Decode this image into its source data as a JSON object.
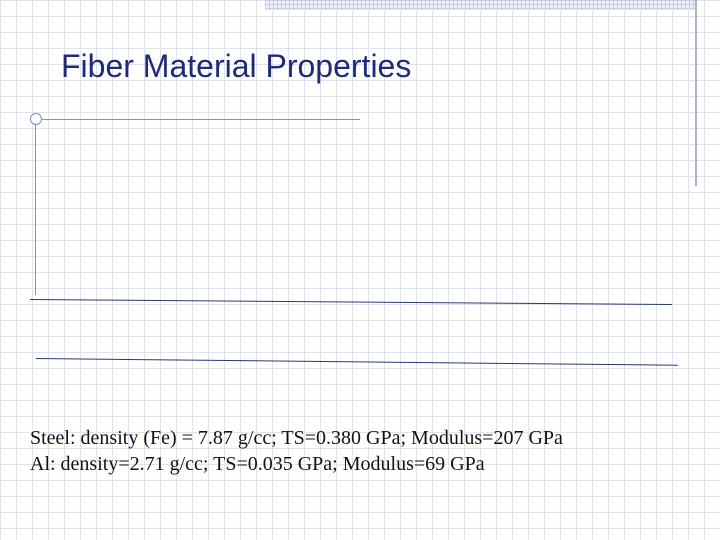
{
  "slide": {
    "title": "Fiber Material Properties",
    "lines": [
      "Steel:  density (Fe) = 7.87 g/cc; TS=0.380 GPa; Modulus=207 GPa",
      "Al: density=2.71 g/cc; TS=0.035 GPa; Modulus=69 GPa"
    ]
  },
  "colors": {
    "title": "#1f2a78",
    "rule": "#8292b8",
    "grid": "#dfe3ee"
  }
}
